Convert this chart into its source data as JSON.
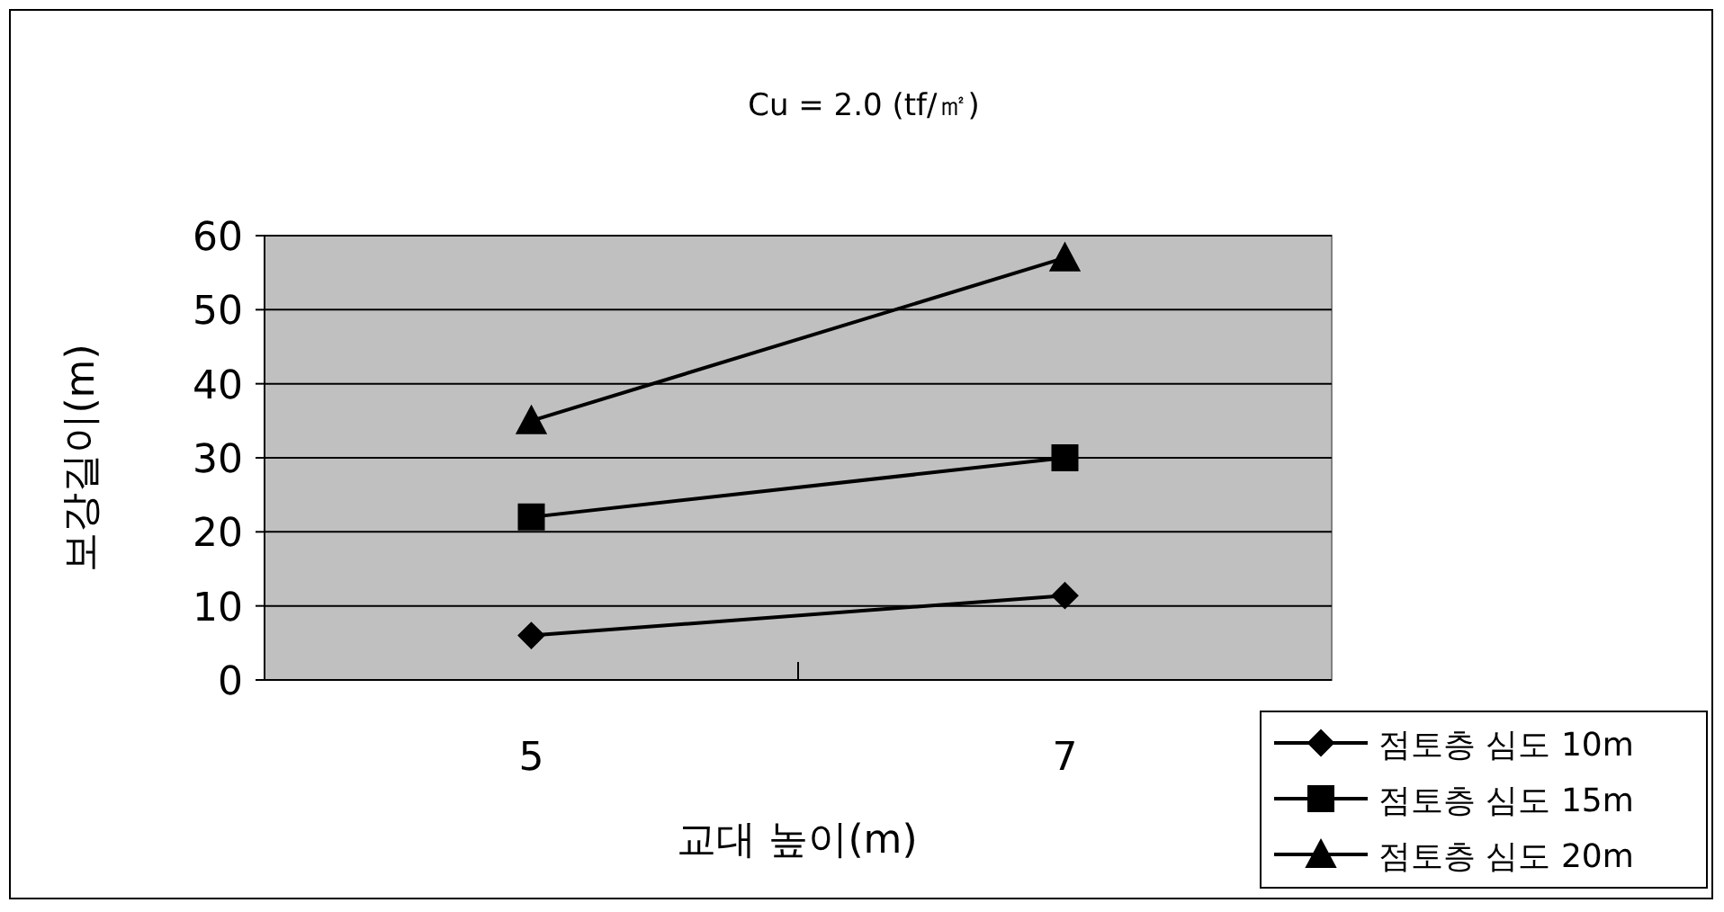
{
  "chart_data": {
    "type": "line",
    "title": "Cu = 2.0 (tf/㎡)",
    "xlabel": "교대 높이(m)",
    "ylabel": "보강길이(m)",
    "categories": [
      "5",
      "7"
    ],
    "series": [
      {
        "name": "점토층 심도 10m",
        "color": "#000000",
        "marker": "diamond",
        "values": [
          6,
          11.4
        ]
      },
      {
        "name": "점토층 심도 15m",
        "color": "#000000",
        "marker": "square",
        "values": [
          22,
          30
        ]
      },
      {
        "name": "점토층 심도 20m",
        "color": "#000000",
        "marker": "triangle",
        "values": [
          35,
          57
        ]
      }
    ],
    "ylim": [
      0,
      60
    ],
    "yticks": [
      0,
      10,
      20,
      30,
      40,
      50,
      60
    ],
    "grid": "y",
    "legend": "bottom right",
    "line_style": "solid"
  }
}
